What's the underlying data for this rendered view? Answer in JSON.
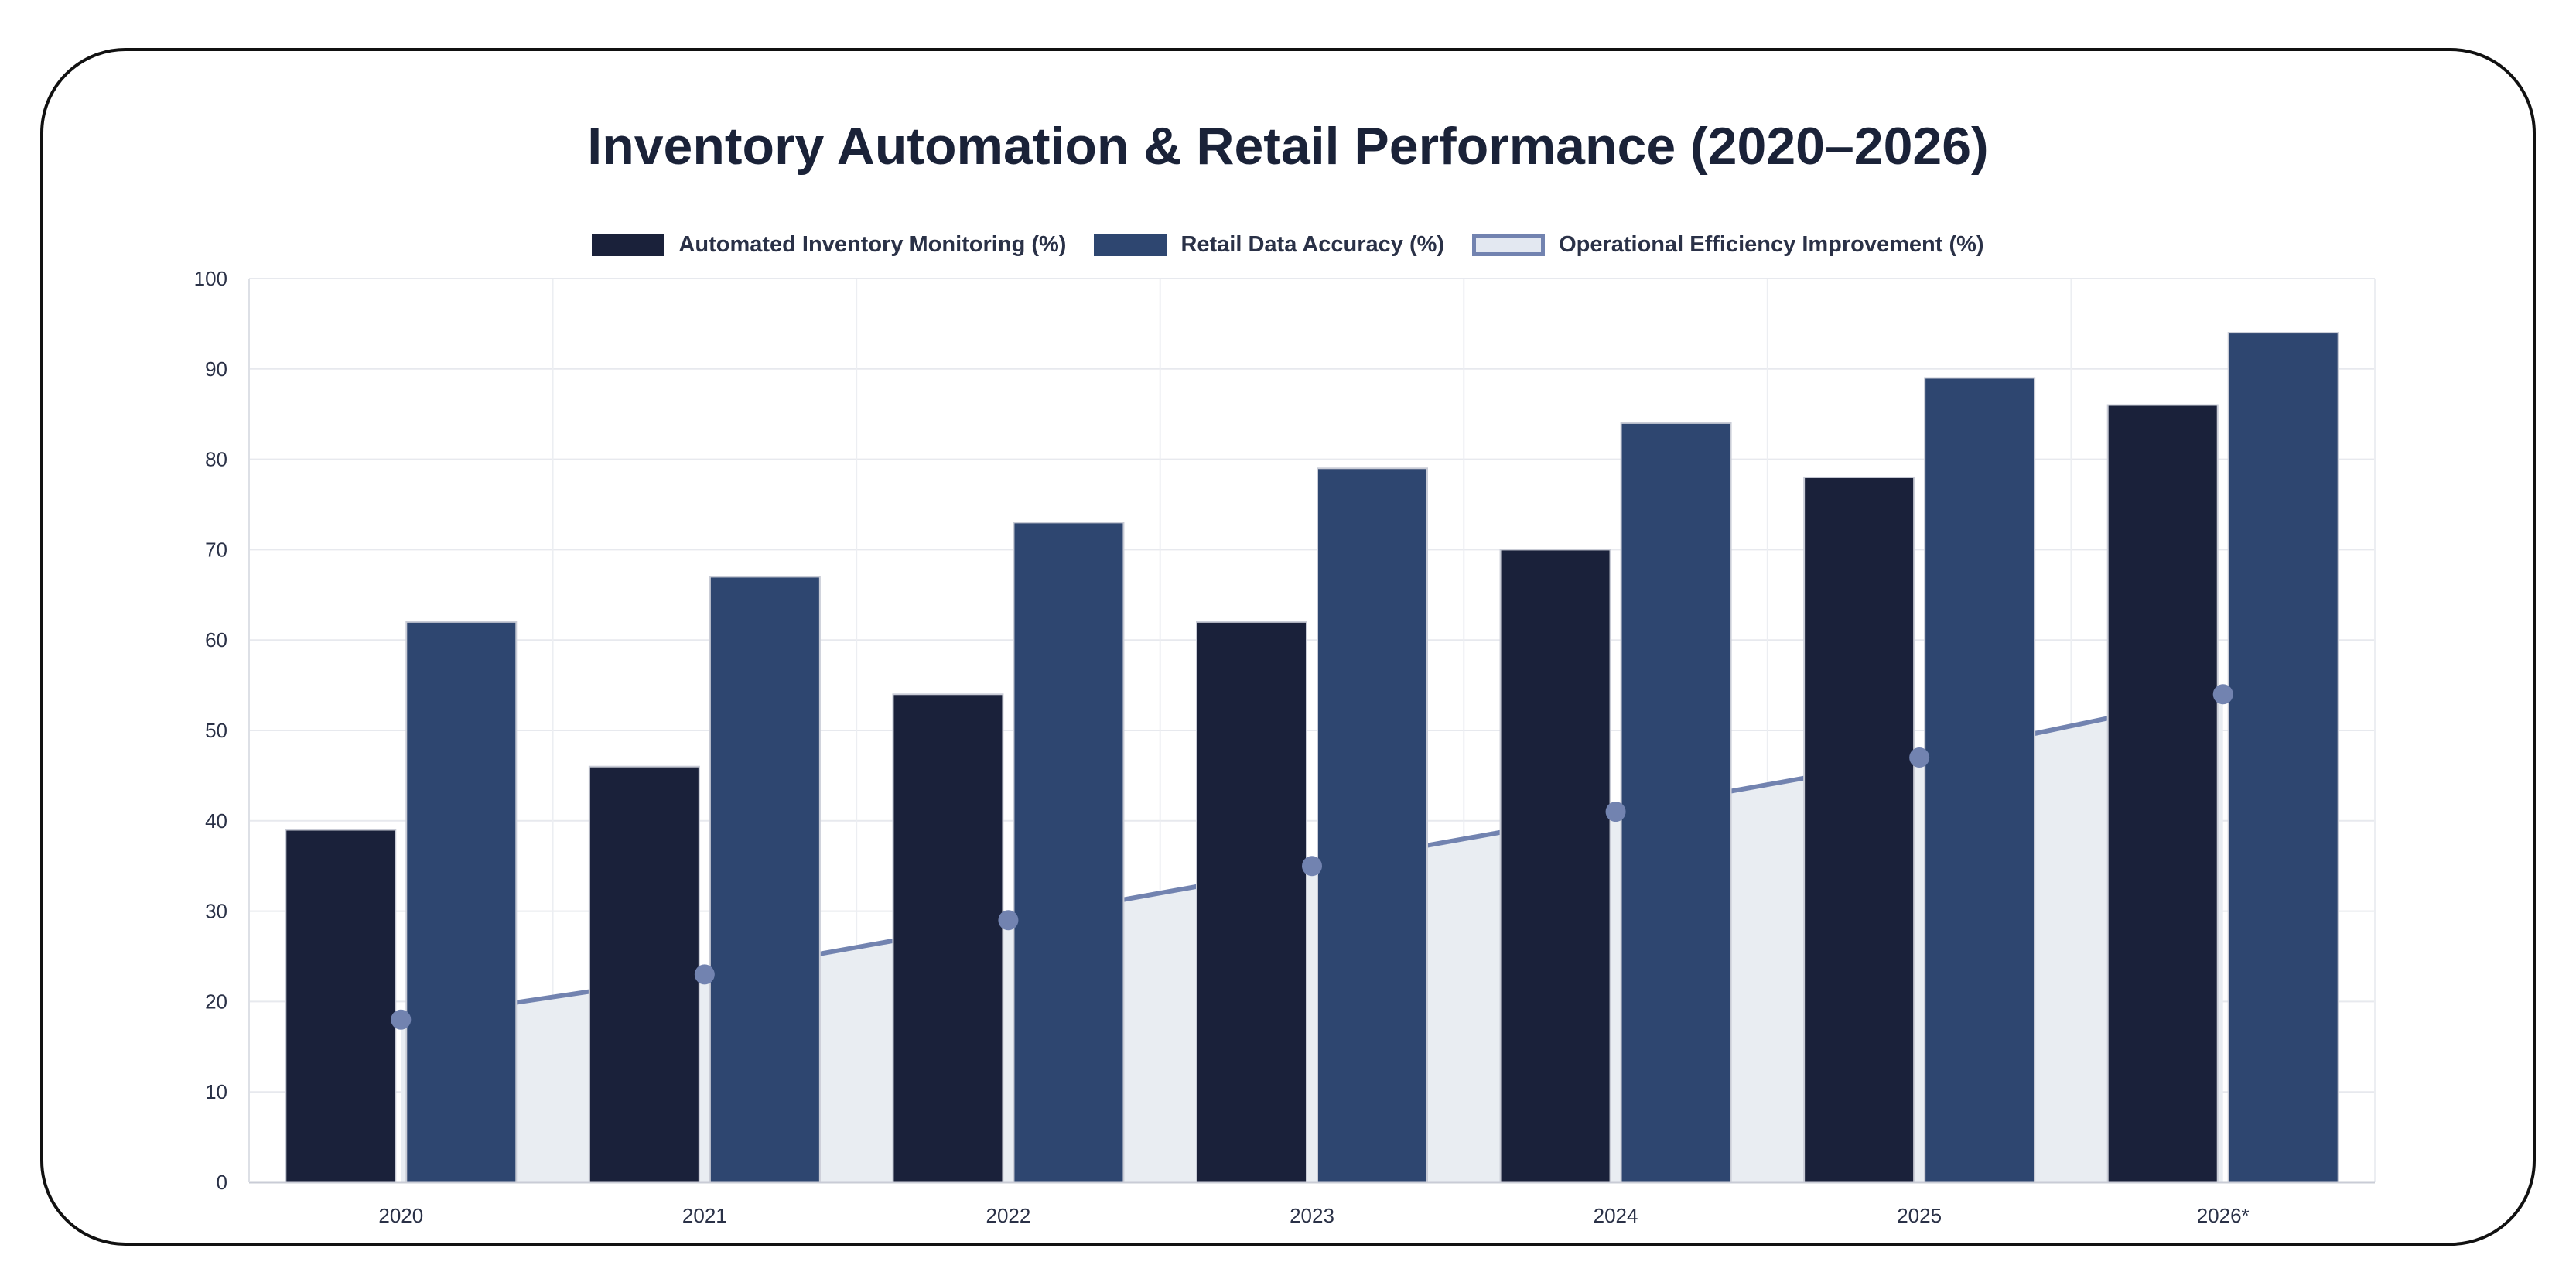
{
  "chart_data": {
    "type": "bar",
    "title": "Inventory Automation & Retail Performance (2020–2026)",
    "categories": [
      "2020",
      "2021",
      "2022",
      "2023",
      "2024",
      "2025",
      "2026*"
    ],
    "series": [
      {
        "name": "Automated Inventory Monitoring (%)",
        "type": "bar",
        "color": "#1a213a",
        "values": [
          39,
          46,
          54,
          62,
          70,
          78,
          86
        ]
      },
      {
        "name": "Retail Data Accuracy (%)",
        "type": "bar",
        "color": "#2e4670",
        "values": [
          62,
          67,
          73,
          79,
          84,
          89,
          94
        ]
      },
      {
        "name": "Operational Efficiency Improvement (%)",
        "type": "area",
        "color": "#7283b0",
        "fill": "#e9edf2",
        "values": [
          18,
          23,
          29,
          35,
          41,
          47,
          54
        ]
      }
    ],
    "ylim": [
      0,
      100
    ],
    "yticks": [
      0,
      10,
      20,
      30,
      40,
      50,
      60,
      70,
      80,
      90,
      100
    ],
    "grid": true,
    "legend": "top-center"
  }
}
